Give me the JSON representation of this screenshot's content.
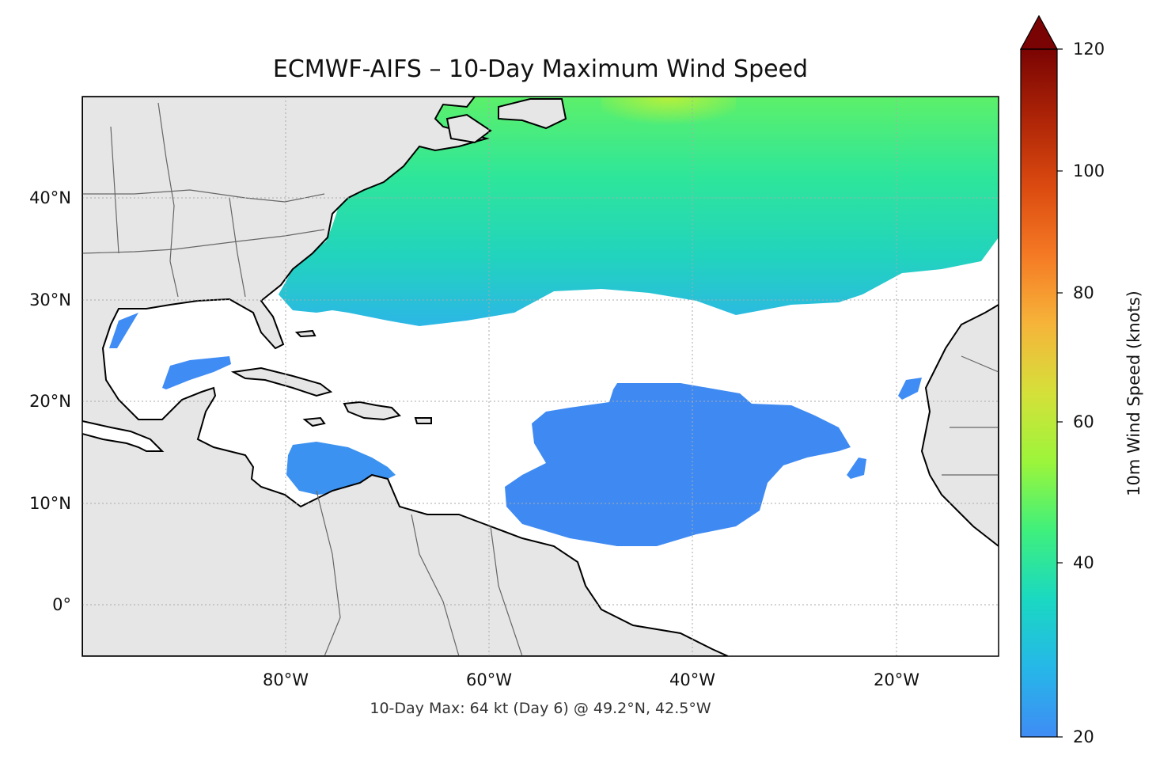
{
  "title": "ECMWF-AIFS – 10-Day Maximum Wind Speed",
  "footer": "10-Day Max: 64 kt (Day 6) @ 49.2°N, 42.5°W",
  "map": {
    "lon_range": [
      -100,
      -10
    ],
    "lat_range": [
      -5,
      50
    ],
    "gridlines": true,
    "lon_ticks": [
      "80°W",
      "60°W",
      "40°W",
      "20°W"
    ],
    "lat_ticks": [
      "40°N",
      "30°N",
      "20°N",
      "10°N",
      "0°"
    ],
    "land_color": "#e6e6e6",
    "ocean_color": "#ffffff"
  },
  "colorbar": {
    "label": "10m Wind Speed (knots)",
    "ticks": [
      "20",
      "40",
      "60",
      "80",
      "100",
      "120"
    ],
    "range": [
      20,
      120
    ],
    "extend": "max",
    "colormap": "turbo"
  },
  "peak": {
    "value_kt": 64,
    "day": 6,
    "lat": 49.2,
    "lon": -42.5
  }
}
